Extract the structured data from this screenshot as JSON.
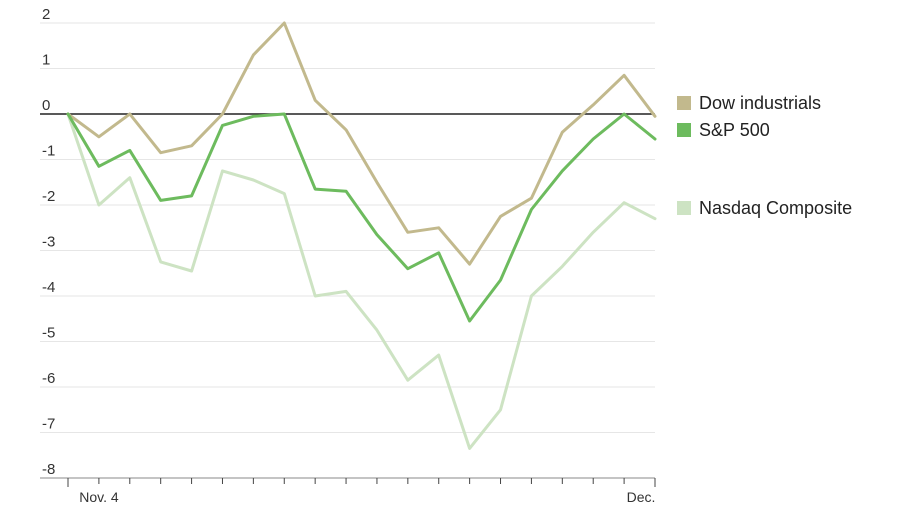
{
  "chart_data": {
    "type": "line",
    "title": "",
    "xlabel": "",
    "ylabel": "",
    "ylim": [
      -8,
      2
    ],
    "yticks": [
      2,
      1,
      0,
      -1,
      -2,
      -3,
      -4,
      -5,
      -6,
      -7,
      -8
    ],
    "grid": true,
    "legend_position": "right",
    "x_tick_labels": [
      "Nov. 4",
      "Dec."
    ],
    "series": [
      {
        "name": "Dow industrials",
        "color": "#c2b98d",
        "values": [
          0,
          -0.5,
          0,
          -0.85,
          -0.7,
          0,
          1.3,
          2.0,
          0.3,
          -0.35,
          -1.5,
          -2.6,
          -2.5,
          -3.3,
          -2.25,
          -1.85,
          -0.4,
          0.2,
          0.85,
          -0.05
        ]
      },
      {
        "name": "S&P 500",
        "color": "#6dbb5e",
        "values": [
          0,
          -1.15,
          -0.8,
          -1.9,
          -1.8,
          -0.25,
          -0.05,
          0,
          -1.65,
          -1.7,
          -2.65,
          -3.4,
          -3.05,
          -4.55,
          -3.65,
          -2.1,
          -1.25,
          -0.55,
          0,
          -0.55
        ]
      },
      {
        "name": "Nasdaq Composite",
        "color": "#cde3c3",
        "values": [
          0,
          -2.0,
          -1.4,
          -3.25,
          -3.45,
          -1.25,
          -1.45,
          -1.75,
          -4.0,
          -3.9,
          -4.75,
          -5.85,
          -5.3,
          -7.35,
          -6.5,
          -4.0,
          -3.35,
          -2.6,
          -1.95,
          -2.3
        ]
      }
    ]
  }
}
